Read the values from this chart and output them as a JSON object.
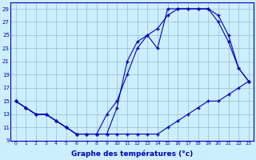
{
  "background_color": "#cceeff",
  "line_color": "#0000bb",
  "grid_color": "#99bbcc",
  "xlabel": "Graphe des températures (°c)",
  "xlim": [
    -0.5,
    23.5
  ],
  "ylim": [
    9,
    30
  ],
  "yticks": [
    9,
    11,
    13,
    15,
    17,
    19,
    21,
    23,
    25,
    27,
    29
  ],
  "xticks": [
    0,
    1,
    2,
    3,
    4,
    5,
    6,
    7,
    8,
    9,
    10,
    11,
    12,
    13,
    14,
    15,
    16,
    17,
    18,
    19,
    20,
    21,
    22,
    23
  ],
  "line_min_x": [
    0,
    1,
    2,
    3,
    4,
    5,
    6,
    7,
    8,
    9,
    10,
    11,
    12,
    13,
    14,
    15,
    16,
    17,
    18,
    19,
    20,
    21,
    22,
    23
  ],
  "line_min_y": [
    15,
    14,
    13,
    13,
    12,
    11,
    10,
    10,
    10,
    10,
    10,
    10,
    10,
    10,
    10,
    11,
    12,
    13,
    14,
    15,
    15,
    16,
    17,
    18
  ],
  "line_max_x": [
    0,
    1,
    2,
    3,
    4,
    5,
    6,
    7,
    8,
    9,
    10,
    11,
    12,
    13,
    14,
    15,
    16,
    17,
    18,
    19,
    20,
    21,
    22,
    23
  ],
  "line_max_y": [
    15,
    14,
    13,
    13,
    12,
    11,
    10,
    10,
    10,
    13,
    15,
    19,
    23,
    25,
    26,
    28,
    29,
    29,
    29,
    29,
    27,
    24,
    20,
    18
  ],
  "line_mean_x": [
    0,
    1,
    2,
    3,
    4,
    5,
    6,
    7,
    8,
    9,
    10,
    11,
    12,
    13,
    14,
    15,
    16,
    17,
    18,
    19,
    20,
    21,
    22,
    23
  ],
  "line_mean_y": [
    15,
    14,
    13,
    13,
    12,
    11,
    10,
    10,
    10,
    10,
    14,
    21,
    24,
    25,
    23,
    29,
    29,
    29,
    29,
    29,
    28,
    25,
    20,
    18
  ]
}
